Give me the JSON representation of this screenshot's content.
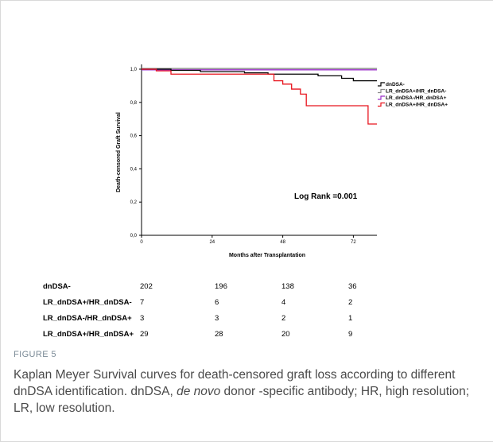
{
  "chart_data": {
    "type": "line",
    "step": true,
    "title": "",
    "xlabel": "Months after Transplantation",
    "ylabel": "Death-censored Graft Survival",
    "xlim": [
      0,
      80
    ],
    "ylim": [
      0,
      1.0
    ],
    "x_ticks": [
      "0",
      "24",
      "48",
      "72"
    ],
    "y_ticks": [
      "0,0",
      "0,2",
      "0,4",
      "0,6",
      "0,8",
      "1,0"
    ],
    "annotation": "Log Rank =0.001",
    "legend_position": "top-right",
    "series": [
      {
        "name": "dnDSA-",
        "color": "#000000",
        "points": [
          [
            0,
            1.0
          ],
          [
            10,
            0.993
          ],
          [
            20,
            0.985
          ],
          [
            35,
            0.978
          ],
          [
            43,
            0.97
          ],
          [
            60,
            0.96
          ],
          [
            68,
            0.945
          ],
          [
            72,
            0.93
          ],
          [
            80,
            0.93
          ]
        ]
      },
      {
        "name": "LR_dnDSA+/HR_dnDSA-",
        "color": "#8a8a8a",
        "points": [
          [
            0,
            1.0
          ],
          [
            80,
            1.0
          ]
        ]
      },
      {
        "name": "LR_dnDSA-/HR_dnDSA+",
        "color": "#9b2fc9",
        "points": [
          [
            0,
            1.0
          ],
          [
            80,
            1.0
          ]
        ]
      },
      {
        "name": "LR_dnDSA+/HR_dnDSA+",
        "color": "#e8141e",
        "points": [
          [
            0,
            1.0
          ],
          [
            5,
            0.99
          ],
          [
            10,
            0.97
          ],
          [
            45,
            0.93
          ],
          [
            48,
            0.91
          ],
          [
            51,
            0.88
          ],
          [
            54,
            0.85
          ],
          [
            56,
            0.78
          ],
          [
            66,
            0.78
          ],
          [
            77,
            0.67
          ],
          [
            80,
            0.67
          ]
        ]
      }
    ]
  },
  "risk_table": {
    "rows": [
      {
        "label": "dnDSA-",
        "values": [
          "202",
          "196",
          "138",
          "36"
        ]
      },
      {
        "label": "LR_dnDSA+/HR_dnDSA-",
        "values": [
          "7",
          "6",
          "4",
          "2"
        ]
      },
      {
        "label": "LR_dnDSA-/HR_dnDSA+",
        "values": [
          "3",
          "3",
          "2",
          "1"
        ]
      },
      {
        "label": "LR_dnDSA+/HR_dnDSA+",
        "values": [
          "29",
          "28",
          "20",
          "9"
        ]
      }
    ]
  },
  "figure": {
    "label": "FIGURE 5",
    "caption_1": "Kaplan Meyer Survival curves for death-censored graft loss according to different dnDSA identification. dnDSA, ",
    "caption_italic": "de novo",
    "caption_2": " donor -specific antibody; HR, high resolution; LR, low resolution."
  }
}
